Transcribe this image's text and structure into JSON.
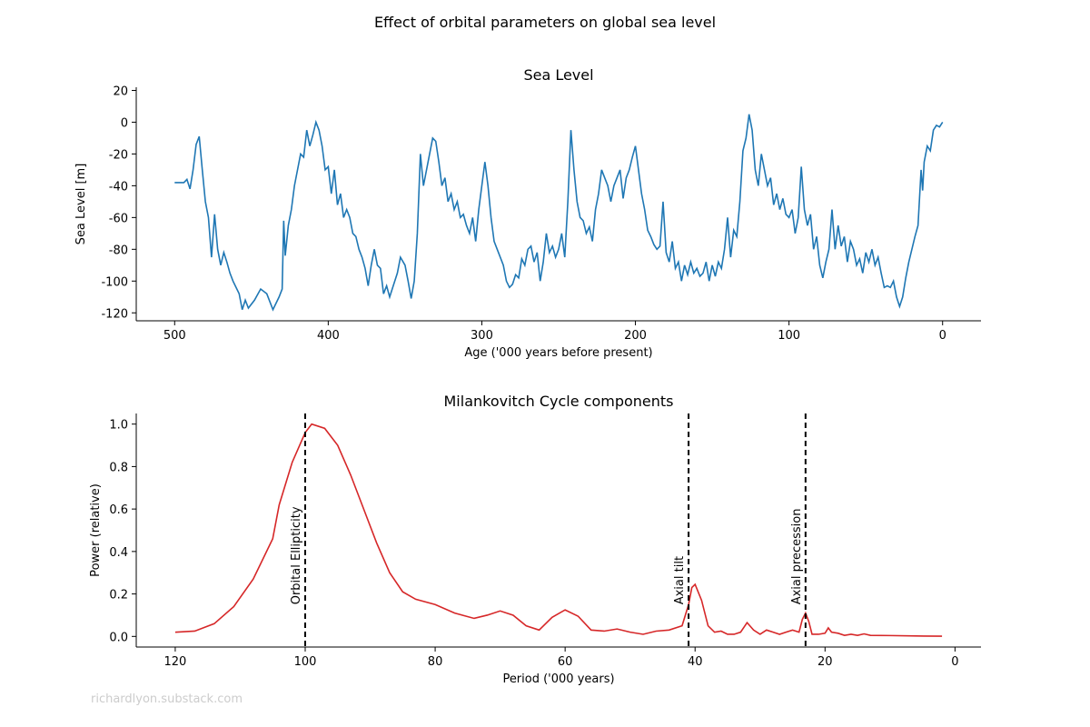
{
  "title": "Effect of orbital parameters on global sea level",
  "watermark": "richardlyon.substack.com",
  "chart_data": [
    {
      "type": "line",
      "title": "Sea Level",
      "xlabel": "Age ('000 years before present)",
      "ylabel": "Sea Level [m]",
      "color": "#1f77b4",
      "xlim": [
        525,
        -25
      ],
      "ylim": [
        -125,
        22
      ],
      "xticks": [
        500,
        400,
        300,
        200,
        100,
        0
      ],
      "yticks": [
        -120,
        -100,
        -80,
        -60,
        -40,
        -20,
        0,
        20
      ],
      "x": [
        500,
        494,
        492,
        490,
        488,
        486,
        484,
        482,
        480,
        478,
        476,
        474,
        472,
        470,
        468,
        466,
        464,
        462,
        458,
        456,
        454,
        452,
        448,
        444,
        440,
        436,
        432,
        430,
        429,
        428,
        426,
        424,
        422,
        420,
        418,
        416,
        414,
        412,
        410,
        408,
        406,
        404,
        402,
        400,
        398,
        396,
        394,
        392,
        390,
        388,
        386,
        384,
        382,
        380,
        378,
        376,
        374,
        372,
        370,
        368,
        366,
        364,
        362,
        360,
        358,
        355,
        353,
        350,
        348,
        346,
        344,
        342,
        340,
        338,
        336,
        334,
        332,
        330,
        328,
        326,
        324,
        322,
        320,
        318,
        316,
        314,
        312,
        310,
        308,
        306,
        304,
        302,
        300,
        298,
        296,
        294,
        292,
        290,
        288,
        286,
        284,
        282,
        280,
        278,
        276,
        274,
        272,
        270,
        268,
        266,
        264,
        262,
        260,
        258,
        256,
        254,
        252,
        250,
        248,
        246,
        244,
        242,
        240,
        238,
        236,
        234,
        232,
        230,
        228,
        226,
        224,
        222,
        220,
        218,
        216,
        214,
        212,
        210,
        208,
        206,
        204,
        202,
        200,
        198,
        196,
        194,
        192,
        190,
        188,
        186,
        184,
        182,
        180,
        178,
        176,
        174,
        172,
        170,
        168,
        166,
        164,
        162,
        160,
        158,
        156,
        154,
        152,
        150,
        148,
        146,
        144,
        142,
        140,
        138,
        136,
        134,
        132,
        130,
        128,
        126,
        124,
        122,
        120,
        118,
        116,
        114,
        112,
        110,
        108,
        106,
        104,
        102,
        100,
        98,
        96,
        94,
        92,
        90,
        88,
        86,
        84,
        82,
        80,
        78,
        76,
        74,
        72,
        70,
        68,
        66,
        64,
        62,
        60,
        58,
        56,
        54,
        52,
        50,
        48,
        46,
        44,
        42,
        40,
        38,
        36,
        34,
        32,
        30,
        28,
        26,
        24,
        22,
        20,
        18,
        16,
        14,
        13,
        12,
        10,
        8,
        6,
        4,
        2,
        0
      ],
      "values": [
        -38,
        -38,
        -36,
        -42,
        -30,
        -14,
        -9,
        -30,
        -50,
        -60,
        -85,
        -58,
        -80,
        -90,
        -82,
        -88,
        -95,
        -100,
        -108,
        -118,
        -112,
        -117,
        -112,
        -105,
        -108,
        -118,
        -110,
        -105,
        -62,
        -84,
        -65,
        -55,
        -40,
        -30,
        -20,
        -22,
        -5,
        -15,
        -8,
        0,
        -5,
        -15,
        -30,
        -28,
        -45,
        -30,
        -52,
        -45,
        -60,
        -55,
        -60,
        -70,
        -72,
        -80,
        -85,
        -92,
        -103,
        -90,
        -80,
        -90,
        -92,
        -108,
        -103,
        -110,
        -104,
        -95,
        -85,
        -90,
        -100,
        -111,
        -100,
        -70,
        -20,
        -40,
        -30,
        -20,
        -10,
        -12,
        -25,
        -40,
        -35,
        -50,
        -45,
        -55,
        -50,
        -60,
        -58,
        -65,
        -70,
        -60,
        -75,
        -55,
        -40,
        -25,
        -40,
        -60,
        -75,
        -80,
        -85,
        -90,
        -100,
        -104,
        -102,
        -96,
        -98,
        -86,
        -90,
        -80,
        -78,
        -88,
        -82,
        -100,
        -88,
        -70,
        -82,
        -78,
        -85,
        -80,
        -70,
        -85,
        -50,
        -5,
        -30,
        -50,
        -60,
        -62,
        -70,
        -66,
        -75,
        -55,
        -45,
        -30,
        -35,
        -40,
        -50,
        -40,
        -35,
        -30,
        -48,
        -35,
        -30,
        -22,
        -15,
        -30,
        -45,
        -55,
        -68,
        -72,
        -77,
        -80,
        -78,
        -50,
        -82,
        -88,
        -75,
        -92,
        -88,
        -100,
        -90,
        -96,
        -88,
        -95,
        -92,
        -97,
        -95,
        -88,
        -100,
        -90,
        -97,
        -88,
        -92,
        -80,
        -60,
        -85,
        -68,
        -72,
        -50,
        -18,
        -10,
        5,
        -5,
        -30,
        -40,
        -20,
        -30,
        -40,
        -35,
        -52,
        -45,
        -55,
        -48,
        -58,
        -60,
        -55,
        -70,
        -60,
        -28,
        -55,
        -65,
        -58,
        -80,
        -72,
        -90,
        -98,
        -88,
        -80,
        -55,
        -80,
        -65,
        -78,
        -72,
        -88,
        -75,
        -80,
        -90,
        -86,
        -95,
        -82,
        -88,
        -80,
        -90,
        -85,
        -95,
        -104,
        -103,
        -104,
        -100,
        -110,
        -116,
        -110,
        -98,
        -88,
        -80,
        -72,
        -65,
        -30,
        -43,
        -25,
        -15,
        -18,
        -5,
        -2,
        -3,
        0
      ]
    },
    {
      "type": "line",
      "title": "Milankovitch Cycle components",
      "xlabel": "Period ('000 years)",
      "ylabel": "Power (relative)",
      "color": "#d62728",
      "xlim": [
        126,
        -4
      ],
      "ylim": [
        -0.05,
        1.05
      ],
      "xticks": [
        120,
        100,
        80,
        60,
        40,
        20,
        0
      ],
      "yticks": [
        {
          "value": 0,
          "label": "0.0"
        },
        0.2,
        0.4,
        0.6,
        0.8,
        {
          "value": 1,
          "label": "1.0"
        }
      ],
      "x": [
        120,
        117,
        114,
        111,
        108,
        105,
        104,
        102,
        100,
        99,
        97,
        95,
        93,
        91,
        89,
        87,
        85,
        83,
        80,
        77,
        74,
        72,
        70,
        68,
        66,
        64,
        62,
        60,
        58,
        56,
        54,
        52,
        50,
        48,
        46,
        44,
        42,
        41,
        40.5,
        40,
        39,
        38,
        37,
        36,
        35,
        34,
        33,
        32,
        31,
        30,
        29,
        28,
        27,
        26,
        25,
        24,
        23.5,
        23,
        22.5,
        22,
        21,
        20,
        19.5,
        19,
        18,
        17,
        16,
        15,
        14,
        13,
        10,
        6,
        2
      ],
      "values": [
        0.02,
        0.025,
        0.06,
        0.14,
        0.27,
        0.46,
        0.62,
        0.82,
        0.96,
        1.0,
        0.98,
        0.9,
        0.76,
        0.6,
        0.44,
        0.3,
        0.21,
        0.175,
        0.15,
        0.11,
        0.085,
        0.1,
        0.12,
        0.1,
        0.05,
        0.03,
        0.09,
        0.125,
        0.095,
        0.03,
        0.025,
        0.035,
        0.02,
        0.01,
        0.025,
        0.03,
        0.05,
        0.15,
        0.23,
        0.245,
        0.17,
        0.05,
        0.02,
        0.025,
        0.01,
        0.01,
        0.02,
        0.065,
        0.03,
        0.01,
        0.03,
        0.02,
        0.01,
        0.02,
        0.03,
        0.02,
        0.08,
        0.11,
        0.07,
        0.01,
        0.01,
        0.015,
        0.04,
        0.02,
        0.015,
        0.005,
        0.01,
        0.005,
        0.012,
        0.005,
        0.004,
        0.002,
        0.001
      ],
      "vlines": [
        {
          "x": 100,
          "label": "Orbital Ellipticity"
        },
        {
          "x": 41,
          "label": "Axial tilt"
        },
        {
          "x": 23,
          "label": "Axial precession"
        }
      ]
    }
  ]
}
